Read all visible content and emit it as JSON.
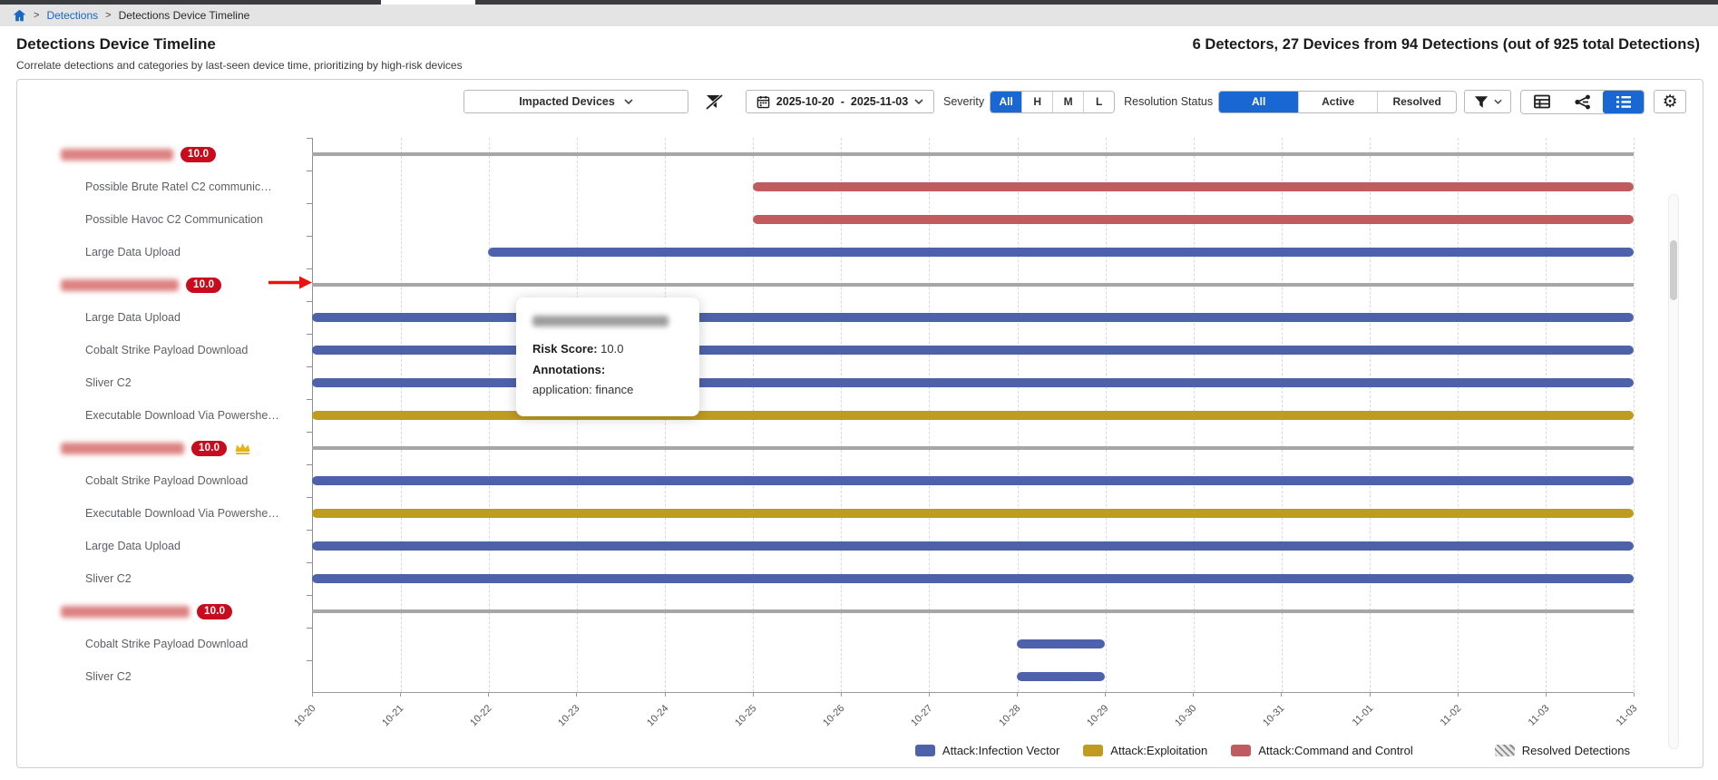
{
  "breadcrumb": {
    "home_icon": "home-icon",
    "items": [
      {
        "label": "Detections",
        "link": true
      },
      {
        "label": "Detections Device Timeline",
        "link": false
      }
    ]
  },
  "header": {
    "title": "Detections Device Timeline",
    "subtitle": "Correlate detections and categories by last-seen device time, prioritizing by high-risk devices",
    "summary": "6 Detectors, 27 Devices from 94 Detections (out of 925 total Detections)"
  },
  "toolbar": {
    "impacted_devices_label": "Impacted Devices",
    "date_range": {
      "start": "2025-10-20",
      "separator": "-",
      "end": "2025-11-03"
    },
    "severity": {
      "label": "Severity",
      "options": [
        "All",
        "H",
        "M",
        "L"
      ],
      "selected": "All"
    },
    "resolution_status": {
      "label": "Resolution Status",
      "options": [
        "All",
        "Active",
        "Resolved"
      ],
      "selected": "All"
    },
    "icons": [
      "filter-off-icon",
      "calendar-icon",
      "filter-dropdown-icon",
      "table-view-icon",
      "graph-view-icon",
      "list-view-icon",
      "settings-gear-icon"
    ],
    "view_selected": "list-view"
  },
  "tooltip": {
    "title_redacted": true,
    "risk_score_label": "Risk Score:",
    "risk_score_value": "10.0",
    "annotations_label": "Annotations:",
    "annotation_value": "application: finance"
  },
  "colors": {
    "accent_blue": "#1967d2",
    "badge_red": "#c90b1e",
    "separator_gray": "#a6a6a6",
    "arrow_red": "#ee1111"
  },
  "chart_data": {
    "type": "timeline",
    "days": [
      "10-20",
      "10-21",
      "10-22",
      "10-23",
      "10-24",
      "10-25",
      "10-26",
      "10-27",
      "10-28",
      "10-29",
      "10-30",
      "10-31",
      "11-01",
      "11-02",
      "11-03"
    ],
    "x_tick_labels": [
      "10-20",
      "10-21",
      "10-22",
      "10-23",
      "10-24",
      "10-25",
      "10-26",
      "10-27",
      "10-28",
      "10-29",
      "10-30",
      "10-31",
      "11-01",
      "11-02",
      "11-03",
      "11-03"
    ],
    "legend": [
      {
        "label": "Attack:Infection Vector",
        "color": "#4e62ac"
      },
      {
        "label": "Attack:Exploitation",
        "color": "#bf9b20"
      },
      {
        "label": "Attack:Command and Control",
        "color": "#c05c5f"
      },
      {
        "label": "Resolved Detections",
        "pattern": "hatched"
      }
    ],
    "devices": [
      {
        "name_redacted": true,
        "risk_score": "10.0",
        "crowned": false,
        "arrow": false,
        "detections": [
          {
            "label": "Possible Brute Ratel C2 communic…",
            "category": "Attack:Command and Control",
            "start": "10-25",
            "end": "11-03"
          },
          {
            "label": "Possible Havoc C2 Communication",
            "category": "Attack:Command and Control",
            "start": "10-25",
            "end": "11-03"
          },
          {
            "label": "Large Data Upload",
            "category": "Attack:Infection Vector",
            "start": "10-22",
            "end": "11-03"
          }
        ]
      },
      {
        "name_redacted": true,
        "risk_score": "10.0",
        "crowned": false,
        "arrow": true,
        "detections": [
          {
            "label": "Large Data Upload",
            "category": "Attack:Infection Vector",
            "start": "10-20",
            "end": "11-03"
          },
          {
            "label": "Cobalt Strike Payload Download",
            "category": "Attack:Infection Vector",
            "start": "10-20",
            "end": "11-03"
          },
          {
            "label": "Sliver C2",
            "category": "Attack:Infection Vector",
            "start": "10-20",
            "end": "11-03"
          },
          {
            "label": "Executable Download Via Powershe…",
            "category": "Attack:Exploitation",
            "start": "10-20",
            "end": "11-03"
          }
        ]
      },
      {
        "name_redacted": true,
        "risk_score": "10.0",
        "crowned": true,
        "arrow": false,
        "detections": [
          {
            "label": "Cobalt Strike Payload Download",
            "category": "Attack:Infection Vector",
            "start": "10-20",
            "end": "11-03"
          },
          {
            "label": "Executable Download Via Powershe…",
            "category": "Attack:Exploitation",
            "start": "10-20",
            "end": "11-03"
          },
          {
            "label": "Large Data Upload",
            "category": "Attack:Infection Vector",
            "start": "10-20",
            "end": "11-03"
          },
          {
            "label": "Sliver C2",
            "category": "Attack:Infection Vector",
            "start": "10-20",
            "end": "11-03"
          }
        ]
      },
      {
        "name_redacted": true,
        "risk_score": "10.0",
        "crowned": false,
        "arrow": false,
        "detections": [
          {
            "label": "Cobalt Strike Payload Download",
            "category": "Attack:Infection Vector",
            "start": "10-28",
            "end": "10-29"
          },
          {
            "label": "Sliver C2",
            "category": "Attack:Infection Vector",
            "start": "10-28",
            "end": "10-29"
          }
        ]
      }
    ]
  }
}
